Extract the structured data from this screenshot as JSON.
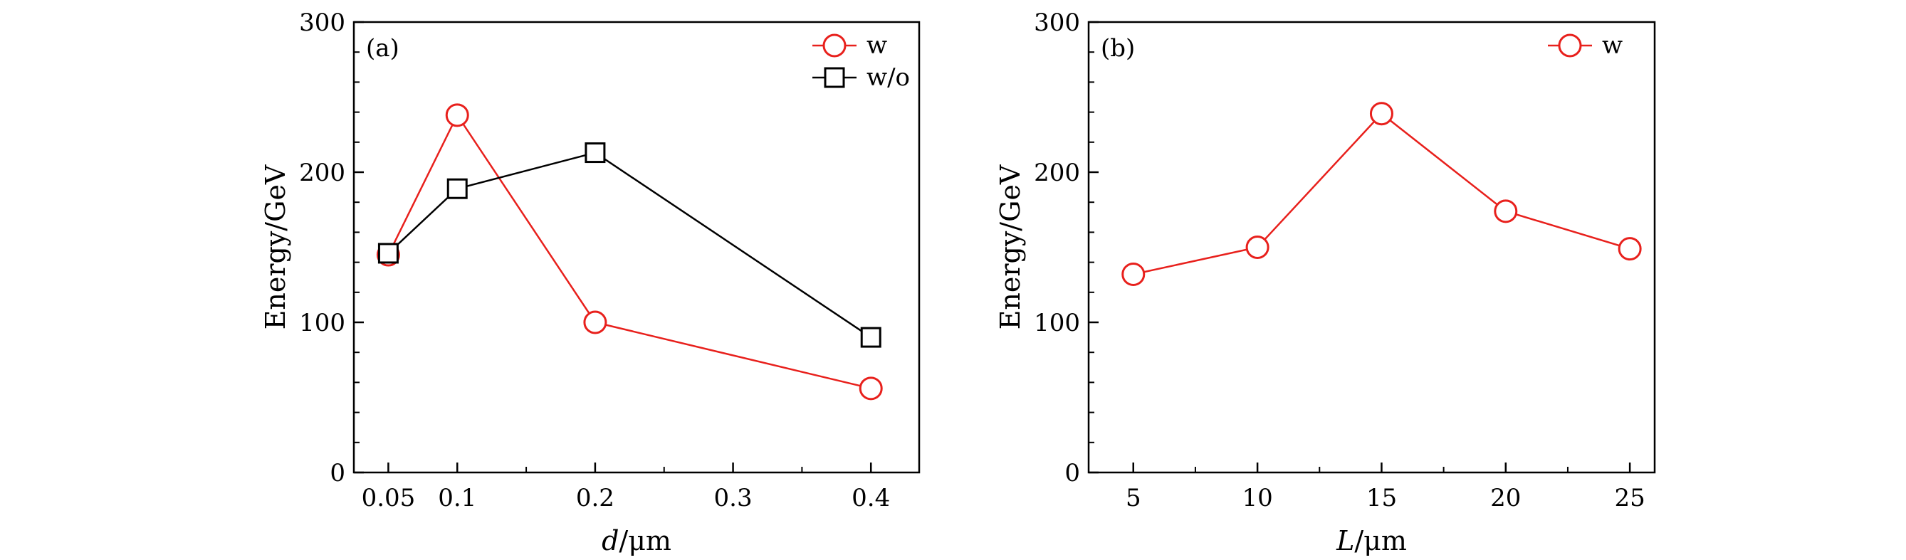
{
  "chart_data": [
    {
      "type": "line",
      "panel_label": "(a)",
      "xlabel_italic": "d",
      "xlabel_rest": "/μm",
      "ylabel": "Energy/GeV",
      "xlim": [
        0.025,
        0.435
      ],
      "ylim": [
        0,
        300
      ],
      "x_ticks": [
        0.05,
        0.1,
        0.2,
        0.3,
        0.4
      ],
      "x_tick_labels": [
        "0.05",
        "0.1",
        "0.2",
        "0.3",
        "0.4"
      ],
      "x_minor_ticks": [
        0.15,
        0.25,
        0.35
      ],
      "y_ticks": [
        0,
        100,
        200,
        300
      ],
      "y_tick_labels": [
        "0",
        "100",
        "200",
        "300"
      ],
      "y_minor_ticks": [
        20,
        40,
        60,
        80,
        120,
        140,
        160,
        180,
        220,
        240,
        260,
        280
      ],
      "legend_position": "top-right",
      "series": [
        {
          "name": "w",
          "color": "#e8201c",
          "marker": "circle",
          "x": [
            0.05,
            0.1,
            0.2,
            0.4
          ],
          "y": [
            145,
            238,
            100,
            56
          ]
        },
        {
          "name": "w/o",
          "color": "#000000",
          "marker": "square",
          "x": [
            0.05,
            0.1,
            0.2,
            0.4
          ],
          "y": [
            146,
            189,
            213,
            90
          ]
        }
      ]
    },
    {
      "type": "line",
      "panel_label": "(b)",
      "xlabel_italic": "L",
      "xlabel_rest": "/μm",
      "ylabel": "Energy/GeV",
      "xlim": [
        3.2,
        26
      ],
      "ylim": [
        0,
        300
      ],
      "x_ticks": [
        5,
        10,
        15,
        20,
        25
      ],
      "x_tick_labels": [
        "5",
        "10",
        "15",
        "20",
        "25"
      ],
      "x_minor_ticks": [
        7.5,
        12.5,
        17.5,
        22.5
      ],
      "y_ticks": [
        0,
        100,
        200,
        300
      ],
      "y_tick_labels": [
        "0",
        "100",
        "200",
        "300"
      ],
      "y_minor_ticks": [
        20,
        40,
        60,
        80,
        120,
        140,
        160,
        180,
        220,
        240,
        260,
        280
      ],
      "legend_position": "top-right",
      "series": [
        {
          "name": "w",
          "color": "#e8201c",
          "marker": "circle",
          "x": [
            5,
            10,
            15,
            20,
            25
          ],
          "y": [
            132,
            150,
            239,
            174,
            149
          ]
        }
      ]
    }
  ]
}
